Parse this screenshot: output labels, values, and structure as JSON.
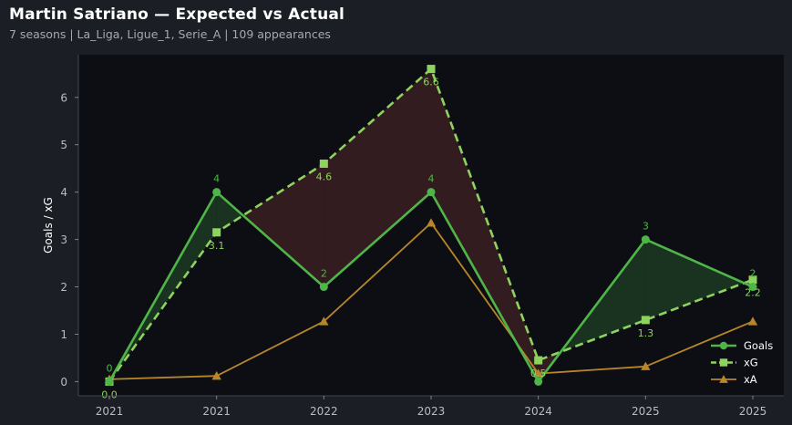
{
  "header": {
    "title": "Martin Satriano — Expected vs Actual",
    "subtitle": "7 seasons | La_Liga, Ligue_1, Serie_A | 109 appearances"
  },
  "colors": {
    "background": "#1b1e25",
    "plot_bg": "#0c0e14",
    "goals": "#4fb548",
    "xg": "#8ed35e",
    "xa": "#b7862a",
    "fill_over": "#1d3a22",
    "fill_under": "#3a1e21"
  },
  "chart_data": {
    "type": "line",
    "categories": [
      "2021",
      "2021",
      "2022",
      "2023",
      "2024",
      "2025",
      "2025"
    ],
    "ylabel": "Goals / xG",
    "xlabel": "",
    "ylim": [
      -0.3,
      6.9
    ],
    "yticks": [
      0,
      1,
      2,
      3,
      4,
      5,
      6
    ],
    "grid": false,
    "legend_position": "bottom-right",
    "series": [
      {
        "name": "Goals",
        "values": [
          0,
          4,
          2,
          4,
          0,
          3,
          2
        ],
        "labels": [
          "0",
          "4",
          "2",
          "4",
          "",
          "3",
          "2"
        ],
        "marker": "circle",
        "style": "solid"
      },
      {
        "name": "xG",
        "values": [
          0.0,
          3.15,
          4.6,
          6.6,
          0.45,
          1.3,
          2.15
        ],
        "labels": [
          "0.0",
          "3.1",
          "4.6",
          "6.6",
          "0.5",
          "1.3",
          "2.2"
        ],
        "marker": "square",
        "style": "dashed"
      },
      {
        "name": "xA",
        "values": [
          0.05,
          0.12,
          1.27,
          3.35,
          0.17,
          0.32,
          1.27
        ],
        "marker": "triangle",
        "style": "solid"
      }
    ]
  }
}
